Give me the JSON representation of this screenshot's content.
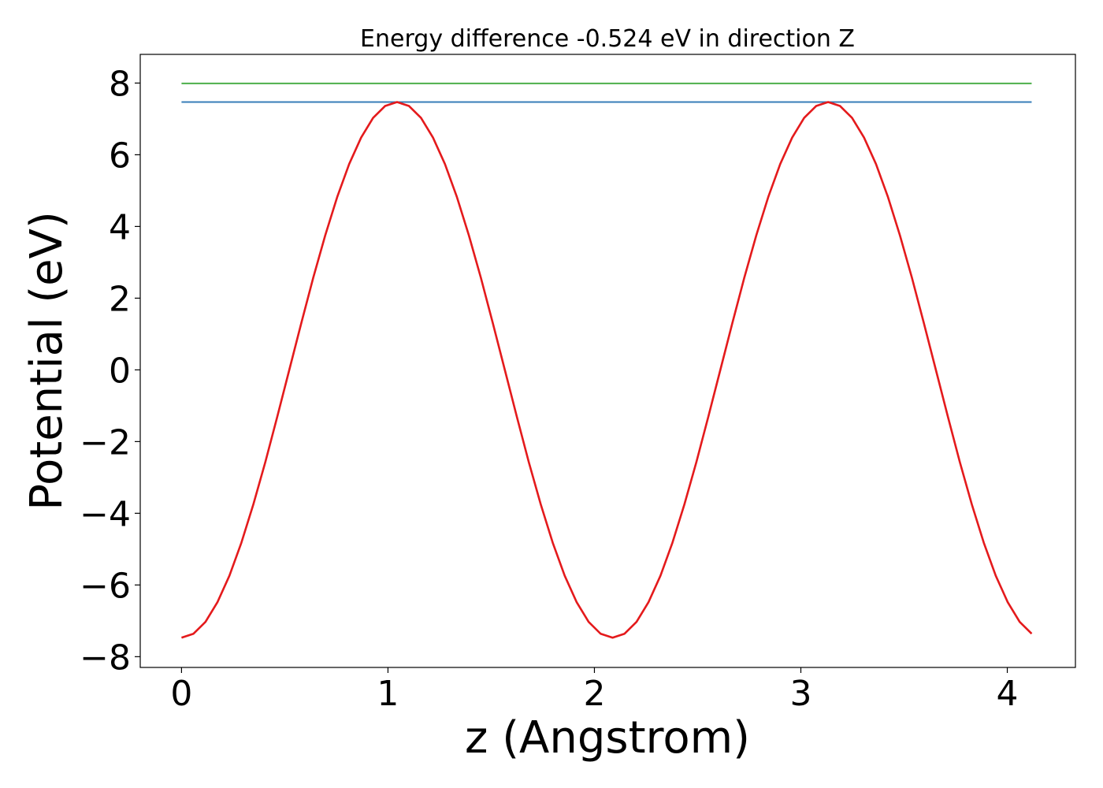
{
  "chart_data": {
    "type": "line",
    "title": "Energy difference -0.524 eV in direction Z",
    "xlabel": "z (Angstrom)",
    "ylabel": "Potential (eV)",
    "xlim": [
      -0.2,
      4.33
    ],
    "ylim": [
      -8.3,
      8.8
    ],
    "xticks": [
      0,
      1,
      2,
      3,
      4
    ],
    "xtick_labels": [
      "0",
      "1",
      "2",
      "3",
      "4"
    ],
    "yticks": [
      -8,
      -6,
      -4,
      -2,
      0,
      2,
      4,
      6,
      8
    ],
    "ytick_labels": [
      "−8",
      "−6",
      "−4",
      "−2",
      "0",
      "2",
      "4",
      "6",
      "8"
    ],
    "grid": false,
    "legend": false,
    "colors": {
      "potential": "#e41a1c",
      "upper_level": "#4daf4a",
      "lower_level": "#377eb8"
    },
    "series": [
      {
        "key": "potential",
        "x": [
          0.0,
          0.058,
          0.116,
          0.174,
          0.232,
          0.29,
          0.348,
          0.406,
          0.464,
          0.522,
          0.58,
          0.638,
          0.696,
          0.754,
          0.812,
          0.87,
          0.928,
          0.986,
          1.044,
          1.102,
          1.16,
          1.218,
          1.276,
          1.334,
          1.392,
          1.45,
          1.508,
          1.566,
          1.624,
          1.682,
          1.74,
          1.798,
          1.856,
          1.914,
          1.972,
          2.03,
          2.088,
          2.146,
          2.204,
          2.262,
          2.32,
          2.378,
          2.436,
          2.494,
          2.552,
          2.61,
          2.668,
          2.726,
          2.784,
          2.842,
          2.9,
          2.958,
          3.016,
          3.074,
          3.132,
          3.19,
          3.248,
          3.306,
          3.364,
          3.422,
          3.48,
          3.538,
          3.596,
          3.654,
          3.712,
          3.77,
          3.828,
          3.886,
          3.944,
          4.002,
          4.06,
          4.118
        ],
        "y": [
          -7.47,
          -7.36,
          -7.03,
          -6.48,
          -5.74,
          -4.82,
          -3.75,
          -2.57,
          -1.3,
          0.0,
          1.3,
          2.57,
          3.75,
          4.82,
          5.74,
          6.48,
          7.03,
          7.36,
          7.47,
          7.36,
          7.03,
          6.48,
          5.74,
          4.82,
          3.75,
          2.57,
          1.3,
          0.0,
          -1.3,
          -2.57,
          -3.75,
          -4.82,
          -5.74,
          -6.48,
          -7.03,
          -7.36,
          -7.47,
          -7.36,
          -7.03,
          -6.48,
          -5.74,
          -4.82,
          -3.75,
          -2.57,
          -1.3,
          0.0,
          1.3,
          2.57,
          3.75,
          4.82,
          5.74,
          6.48,
          7.03,
          7.36,
          7.47,
          7.36,
          7.03,
          6.48,
          5.74,
          4.82,
          3.75,
          2.57,
          1.3,
          0.0,
          -1.3,
          -2.57,
          -3.75,
          -4.82,
          -5.74,
          -6.48,
          -7.03,
          -7.36
        ]
      },
      {
        "key": "upper_level",
        "x": [
          0.0,
          4.118
        ],
        "y": [
          7.99,
          7.99
        ]
      },
      {
        "key": "lower_level",
        "x": [
          0.0,
          4.118
        ],
        "y": [
          7.47,
          7.47
        ]
      }
    ]
  }
}
